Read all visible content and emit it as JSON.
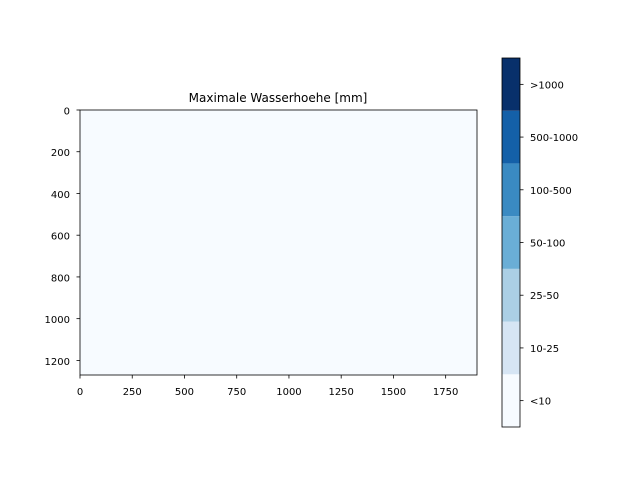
{
  "chart_data": {
    "type": "heatmap",
    "title": "Maximale Wasserhoehe [mm]",
    "xlabel": "",
    "ylabel": "",
    "xlim": [
      0,
      1900
    ],
    "ylim": [
      1270,
      0
    ],
    "x_ticks": [
      0,
      250,
      500,
      750,
      1000,
      1250,
      1500,
      1750
    ],
    "y_ticks": [
      0,
      200,
      400,
      600,
      800,
      1000,
      1200
    ],
    "grid": false,
    "field_category_index": 0,
    "colorbar": {
      "placement": "right",
      "categories": [
        {
          "label": "<10",
          "color": "#f7fbff"
        },
        {
          "label": "10-25",
          "color": "#d6e5f4"
        },
        {
          "label": "25-50",
          "color": "#abcfe5"
        },
        {
          "label": "50-100",
          "color": "#6aaed6"
        },
        {
          "label": "100-500",
          "color": "#3a8ac2"
        },
        {
          "label": "500-1000",
          "color": "#1460a8"
        },
        {
          "label": ">1000",
          "color": "#08306b"
        }
      ]
    }
  }
}
